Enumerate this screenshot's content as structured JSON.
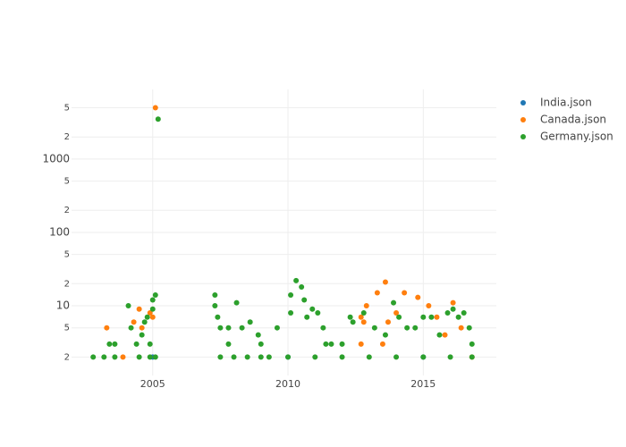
{
  "chart_data": {
    "type": "scatter",
    "log_y": true,
    "grid": true,
    "legend": "top-right",
    "xlim": [
      2002,
      2017.7
    ],
    "xticks": [
      2005,
      2010,
      2015
    ],
    "ylim": [
      1.12,
      8900
    ],
    "yticks": [
      2,
      5,
      10,
      {
        "value": 20,
        "label": "2"
      },
      {
        "value": 50,
        "label": "5"
      },
      100,
      {
        "value": 200,
        "label": "2"
      },
      {
        "value": 500,
        "label": "5"
      },
      1000,
      {
        "value": 2000,
        "label": "2"
      },
      {
        "value": 5000,
        "label": "5"
      }
    ],
    "series": [
      {
        "name": "India.json",
        "color": "#1f77b4",
        "x": [
          2005.0,
          2010.0,
          2015.0
        ],
        "values": [
          2,
          2,
          2
        ]
      },
      {
        "name": "Canada.json",
        "color": "#ff7f0e",
        "x": [
          2003.3,
          2004.3,
          2004.5,
          2004.6,
          2004.9,
          2005.1,
          2005.0,
          2012.7,
          2012.8,
          2012.9,
          2013.3,
          2013.6,
          2013.7,
          2014.3,
          2014.8,
          2015.2,
          2015.5,
          2016.1,
          2016.4,
          2003.9,
          2012.7,
          2013.5,
          2014.0,
          2015.8,
          2016.8
        ],
        "values": [
          5,
          6,
          9,
          5,
          8,
          5000,
          7,
          7,
          6,
          10,
          15,
          21,
          6,
          15,
          13,
          10,
          7,
          11,
          5,
          2,
          3,
          3,
          8,
          4,
          2
        ]
      },
      {
        "name": "Germany.json",
        "color": "#2ca02c",
        "x": [
          2002.8,
          2003.2,
          2003.4,
          2003.6,
          2003.6,
          2004.1,
          2004.2,
          2004.4,
          2004.6,
          2004.7,
          2004.8,
          2004.9,
          2005.0,
          2005.1,
          2005.2,
          2005.0,
          2005.1,
          2004.5,
          2004.9,
          2007.3,
          2007.3,
          2007.4,
          2007.5,
          2007.8,
          2007.8,
          2008.1,
          2008.3,
          2008.6,
          2008.9,
          2009.0,
          2009.3,
          2009.6,
          2010.1,
          2010.1,
          2010.3,
          2010.5,
          2010.6,
          2010.7,
          2010.9,
          2011.1,
          2011.3,
          2011.4,
          2011.6,
          2012.0,
          2012.3,
          2012.4,
          2012.8,
          2013.2,
          2013.6,
          2013.9,
          2014.1,
          2014.4,
          2014.7,
          2015.0,
          2015.3,
          2015.6,
          2015.9,
          2016.1,
          2016.3,
          2016.5,
          2016.7,
          2016.8,
          2007.5,
          2008.0,
          2008.5,
          2009.0,
          2010.0,
          2011.0,
          2012.0,
          2013.0,
          2014.0,
          2015.0,
          2016.0,
          2016.8
        ],
        "values": [
          2,
          2,
          3,
          3,
          2,
          10,
          5,
          3,
          4,
          6,
          7,
          3,
          12,
          14,
          3500,
          9,
          2,
          2,
          2,
          14,
          10,
          7,
          5,
          5,
          3,
          11,
          5,
          6,
          4,
          3,
          2,
          5,
          14,
          8,
          22,
          18,
          12,
          7,
          9,
          8,
          5,
          3,
          3,
          3,
          7,
          6,
          8,
          5,
          4,
          11,
          7,
          5,
          5,
          7,
          7,
          4,
          8,
          9,
          7,
          8,
          5,
          3,
          2,
          2,
          2,
          2,
          2,
          2,
          2,
          2,
          2,
          2,
          2,
          2
        ]
      }
    ]
  }
}
